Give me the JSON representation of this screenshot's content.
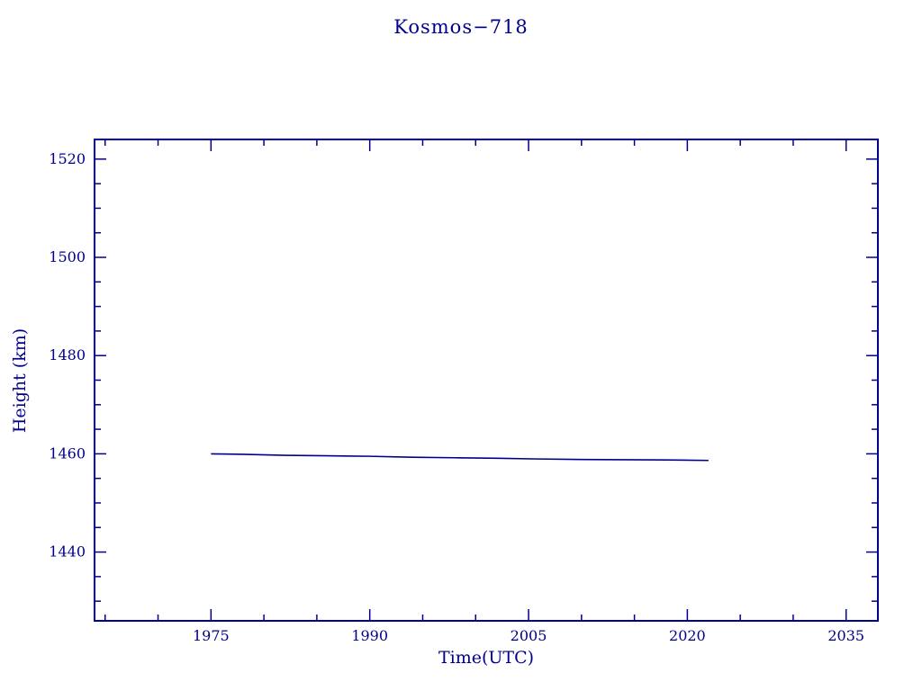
{
  "chart_data": {
    "type": "line",
    "title": "Kosmos−718",
    "xlabel": "Time(UTC)",
    "ylabel": "Height (km)",
    "xlim": [
      1964,
      2038
    ],
    "ylim": [
      1426,
      1524
    ],
    "xticks": [
      1975,
      1990,
      2005,
      2020,
      2035
    ],
    "yticks": [
      1440,
      1460,
      1480,
      1500,
      1520
    ],
    "x_minor_step": 5,
    "y_minor_step": 5,
    "grid": "off",
    "legend": "none",
    "line_color": "#00008b",
    "axis_color": "#00008b",
    "series": [
      {
        "name": "height",
        "x": [
          1975,
          1978,
          1982,
          1986,
          1990,
          1994,
          1998,
          2002,
          2006,
          2010,
          2014,
          2018,
          2022
        ],
        "y": [
          1460.0,
          1459.9,
          1459.7,
          1459.6,
          1459.5,
          1459.3,
          1459.2,
          1459.1,
          1458.95,
          1458.85,
          1458.8,
          1458.75,
          1458.65
        ]
      }
    ]
  }
}
